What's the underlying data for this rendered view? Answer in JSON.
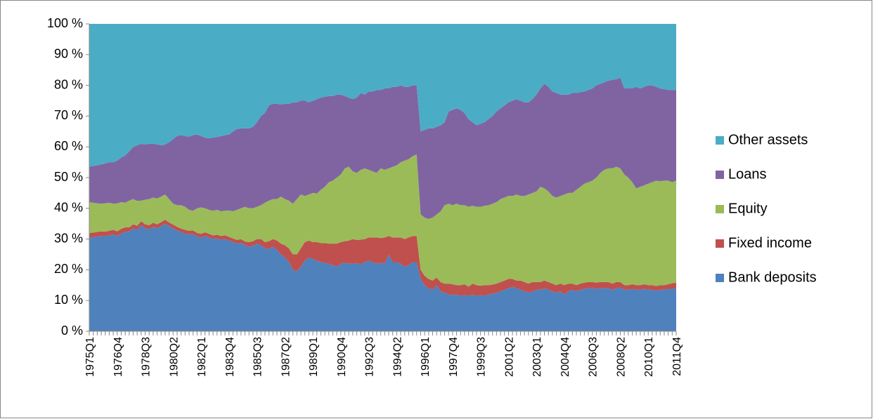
{
  "chart_data": {
    "type": "stacked-area",
    "legend": "right",
    "ylim": [
      0,
      100
    ],
    "yticks": [
      {
        "value": 0,
        "label": "0 %"
      },
      {
        "value": 10,
        "label": "10 %"
      },
      {
        "value": 20,
        "label": "20 %"
      },
      {
        "value": 30,
        "label": "30 %"
      },
      {
        "value": 40,
        "label": "40 %"
      },
      {
        "value": 50,
        "label": "50 %"
      },
      {
        "value": 60,
        "label": "60 %"
      },
      {
        "value": 70,
        "label": "70 %"
      },
      {
        "value": 80,
        "label": "80 %"
      },
      {
        "value": 90,
        "label": "90 %"
      },
      {
        "value": 100,
        "label": "100 %"
      }
    ],
    "categories": [
      "1975Q1",
      null,
      null,
      null,
      null,
      null,
      null,
      "1976Q4",
      null,
      null,
      null,
      null,
      null,
      null,
      "1978Q3",
      null,
      null,
      null,
      null,
      null,
      null,
      "1980Q2",
      null,
      null,
      null,
      null,
      null,
      null,
      "1982Q1",
      null,
      null,
      null,
      null,
      null,
      null,
      "1983Q4",
      null,
      null,
      null,
      null,
      null,
      null,
      "1985Q3",
      null,
      null,
      null,
      null,
      null,
      null,
      "1987Q2",
      null,
      null,
      null,
      null,
      null,
      null,
      "1989Q1",
      null,
      null,
      null,
      null,
      null,
      null,
      "1990Q4",
      null,
      null,
      null,
      null,
      null,
      null,
      "1992Q3",
      null,
      null,
      null,
      null,
      null,
      null,
      "1994Q2",
      null,
      null,
      null,
      null,
      null,
      null,
      "1996Q1",
      null,
      null,
      null,
      null,
      null,
      null,
      "1997Q4",
      null,
      null,
      null,
      null,
      null,
      null,
      "1999Q3",
      null,
      null,
      null,
      null,
      null,
      null,
      "2001Q2",
      null,
      null,
      null,
      null,
      null,
      null,
      "2003Q1",
      null,
      null,
      null,
      null,
      null,
      null,
      "2004Q4",
      null,
      null,
      null,
      null,
      null,
      null,
      "2006Q3",
      null,
      null,
      null,
      null,
      null,
      null,
      "2008Q2",
      null,
      null,
      null,
      null,
      null,
      null,
      "2010Q1",
      null,
      null,
      null,
      null,
      null,
      null,
      "2011Q4"
    ],
    "series": [
      {
        "name": "Bank deposits",
        "color": "#4f81bd",
        "values": [
          30.5,
          30.6,
          30.8,
          31,
          30.9,
          31.2,
          31.5,
          31,
          31.8,
          32.3,
          32.5,
          33.5,
          33,
          34.5,
          33.5,
          33.2,
          34,
          33.5,
          34.2,
          35,
          34.2,
          33.5,
          32.8,
          32.2,
          31.8,
          31.5,
          31.6,
          30.8,
          30.5,
          31,
          30.5,
          30,
          30.2,
          29.8,
          30,
          29.5,
          29,
          28.5,
          28.8,
          28,
          27.5,
          27.8,
          28.5,
          28,
          27,
          26.8,
          27.5,
          26.5,
          25,
          24,
          22.5,
          20,
          19.5,
          21,
          23,
          24,
          23.5,
          23,
          22.5,
          22.2,
          22,
          21.5,
          21,
          22,
          22.3,
          22,
          22,
          22.2,
          21.8,
          22.5,
          23,
          22.5,
          22,
          22.3,
          22,
          25,
          22.5,
          22.5,
          22,
          21,
          21.5,
          22.5,
          22.5,
          17,
          15,
          14,
          13.5,
          15,
          13,
          12.5,
          12,
          11.8,
          12,
          11.5,
          11.8,
          11.5,
          12,
          11.5,
          11.8,
          11.5,
          12,
          12.2,
          12.5,
          13,
          13.5,
          14,
          14.5,
          14,
          13.5,
          13,
          12.5,
          13,
          13.5,
          13.5,
          14,
          13.5,
          13,
          12.5,
          13,
          12,
          13,
          13.5,
          13,
          13.5,
          13.8,
          14,
          14,
          13.8,
          14,
          14,
          14,
          13.5,
          14,
          14.2,
          13.5,
          13.5,
          13.8,
          13.5,
          13.5,
          13.8,
          13.5,
          13.5,
          13.2,
          13.5,
          13.5,
          13.8,
          13.8,
          14
        ]
      },
      {
        "name": "Fixed income",
        "color": "#c0504d",
        "values": [
          1.5,
          1.5,
          1.5,
          1.5,
          1.5,
          1.5,
          1.5,
          1.5,
          1.5,
          1.5,
          1.3,
          1.3,
          1.3,
          1.3,
          1.3,
          1.3,
          1.3,
          1.3,
          1.3,
          1.3,
          1.2,
          1.2,
          1.2,
          1.2,
          1.2,
          1.2,
          1.2,
          1.2,
          1.2,
          1.2,
          1.2,
          1.2,
          1.2,
          1.2,
          1.2,
          1.2,
          1.2,
          1.2,
          1.2,
          1.2,
          1.5,
          1.5,
          1.5,
          2,
          2,
          2.5,
          2.5,
          3,
          3.5,
          4,
          4.5,
          5,
          5.5,
          6,
          6,
          5.5,
          5.5,
          6,
          6.2,
          6.5,
          6.5,
          7,
          7.5,
          7,
          7,
          7.5,
          8,
          7.5,
          8,
          7.5,
          7.5,
          8,
          8.5,
          8,
          8.5,
          6,
          8,
          8,
          8.5,
          9,
          9,
          8.5,
          8.5,
          3,
          3,
          3,
          3,
          2.5,
          3,
          3,
          3.5,
          3.5,
          3,
          3.5,
          3.5,
          3,
          3.5,
          3.5,
          3,
          3.5,
          3,
          3,
          3,
          3,
          3,
          3,
          2.5,
          2.5,
          3,
          3,
          3,
          3,
          2.5,
          2.5,
          2.5,
          2.5,
          2.5,
          2.5,
          2.5,
          3,
          2.5,
          2,
          2,
          2,
          2,
          2,
          2,
          2,
          2,
          2,
          2,
          2,
          2,
          1.8,
          1.5,
          1.5,
          1.5,
          1.5,
          1.5,
          1.5,
          1.5,
          1.5,
          1.5,
          1.5,
          1.5,
          1.5,
          1.8,
          1.8
        ]
      },
      {
        "name": "Equity",
        "color": "#9bbb59",
        "values": [
          10,
          9.7,
          9.3,
          9,
          9.2,
          9.1,
          8.5,
          9.1,
          8.7,
          8,
          8.7,
          8.2,
          8.1,
          6.7,
          8,
          8.5,
          8.2,
          8.4,
          8.3,
          8.2,
          7.6,
          6.8,
          7,
          7.6,
          7.5,
          6.8,
          6.4,
          8,
          8.6,
          7.8,
          7.8,
          8,
          8.1,
          8,
          8,
          8.6,
          8.8,
          9.8,
          10,
          11.3,
          11,
          10.7,
          10.5,
          11,
          12.8,
          13.2,
          13,
          13.5,
          15.3,
          15,
          15.5,
          16.5,
          18,
          17.5,
          15,
          15,
          16,
          15.8,
          17.3,
          18.3,
          20,
          20.5,
          21.5,
          22,
          23.7,
          24,
          22,
          21.8,
          22.7,
          23,
          22,
          21.5,
          21,
          22.7,
          22,
          22,
          23,
          23.5,
          24.5,
          25.5,
          25.5,
          26,
          26.5,
          18,
          19,
          19.5,
          20.5,
          20.5,
          23,
          25.5,
          26,
          25.7,
          26.5,
          26,
          25.7,
          26,
          25.3,
          25.5,
          25.7,
          25.8,
          26,
          26.3,
          26.5,
          27,
          27,
          27,
          27,
          28,
          27.5,
          28,
          29,
          29,
          29.5,
          31,
          30,
          29.5,
          28.5,
          28.5,
          28.5,
          29.5,
          29.5,
          29.5,
          31,
          31.5,
          32.2,
          32.5,
          33,
          34.2,
          35.5,
          36.5,
          37,
          37.5,
          37.5,
          37,
          36,
          35,
          33.2,
          31.5,
          32,
          32.2,
          33,
          33.5,
          34.3,
          33.8,
          34,
          33.7,
          32.9,
          33.2
        ]
      },
      {
        "name": "Loans",
        "color": "#8064a2",
        "values": [
          11.5,
          12,
          12.4,
          12.8,
          13,
          13.2,
          13.5,
          13.9,
          14.5,
          15.4,
          16,
          17,
          18.1,
          18.5,
          18,
          18,
          17.5,
          17.6,
          16.7,
          16.3,
          18.5,
          21,
          22.5,
          22.8,
          23,
          23.8,
          24.6,
          24,
          23.2,
          23,
          23.3,
          23.8,
          23.7,
          24.5,
          24.6,
          24.7,
          26,
          26.3,
          26,
          25.5,
          26,
          26.5,
          27.5,
          29,
          29.2,
          31,
          31,
          31,
          30,
          31,
          31.5,
          33,
          31.5,
          30.5,
          31,
          30,
          30,
          30.7,
          30,
          29.3,
          28,
          27.5,
          27,
          26,
          23.5,
          22.5,
          23.5,
          24.5,
          25,
          24,
          25.5,
          26,
          27,
          25.5,
          26.5,
          26,
          26,
          25.5,
          25,
          24,
          23.5,
          23,
          22.5,
          27,
          28.5,
          29.5,
          29,
          28.5,
          28,
          27,
          30,
          31,
          31,
          31,
          30,
          28.5,
          27.2,
          26.5,
          27,
          27.2,
          28,
          28.5,
          29.5,
          29.5,
          30,
          30.5,
          31,
          31,
          31,
          30.5,
          30,
          30.5,
          31.5,
          32,
          34,
          34,
          34,
          34,
          33,
          32.5,
          32,
          32.5,
          31.5,
          30.8,
          30,
          30,
          30,
          30,
          29,
          28.5,
          28.5,
          28.8,
          28.5,
          29.5,
          28,
          29,
          30.5,
          33,
          32,
          32,
          32,
          31.5,
          30.5,
          30.2,
          29.8,
          29.5,
          30,
          29.5
        ]
      },
      {
        "name": "Other assets",
        "color": "#4bacc6",
        "values": [
          46.5,
          46.2,
          46,
          45.7,
          45.4,
          45,
          45,
          44.5,
          43.5,
          42.8,
          41.5,
          40,
          39.5,
          39,
          39.2,
          39,
          39,
          39.2,
          39.5,
          39.2,
          38.5,
          37.5,
          36.5,
          36.2,
          36.5,
          36.7,
          36.2,
          36,
          36.5,
          37,
          37.2,
          37,
          36.8,
          36.5,
          36.2,
          36,
          35,
          34.2,
          34,
          34,
          34,
          33.5,
          32,
          30,
          29,
          26.5,
          26,
          26,
          26.2,
          26,
          26,
          25.5,
          25.5,
          25,
          25,
          25.5,
          25,
          24.5,
          24,
          23.7,
          23.5,
          23.5,
          23,
          23,
          23.5,
          24,
          24.5,
          24,
          22.5,
          23,
          22,
          22,
          21.5,
          21.5,
          21,
          21,
          20.5,
          20.5,
          20,
          20.5,
          20.5,
          20,
          20,
          35,
          34.5,
          34,
          34,
          33.5,
          33,
          32,
          28.5,
          28,
          27.5,
          28,
          29,
          31,
          32,
          33,
          32.5,
          32,
          31,
          30,
          28.5,
          27.5,
          26.5,
          25.5,
          25,
          24.5,
          25,
          25.5,
          25.5,
          24.5,
          23,
          21,
          19.5,
          20.5,
          22,
          22.5,
          23,
          23,
          23,
          22.5,
          22.5,
          22.2,
          22,
          21.5,
          21,
          20,
          19.5,
          19,
          18.5,
          18.2,
          18,
          17.5,
          21,
          21,
          21,
          20.5,
          21,
          20.5,
          20,
          20,
          20.5,
          21,
          21.2,
          21.5,
          21.5,
          21.5
        ]
      }
    ]
  }
}
